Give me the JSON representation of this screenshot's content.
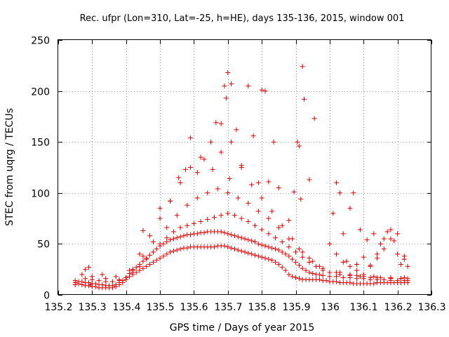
{
  "chart_data": {
    "type": "scatter",
    "title": "Rec. ufpr (Lon=310, Lat=-25, h=HE), days 135-136, 2015, window 001",
    "xlabel": "GPS time / Days of year 2015",
    "ylabel": "STEC from uqrg / TECUs",
    "xlim": [
      135.2,
      136.3
    ],
    "ylim": [
      0,
      250
    ],
    "xticks": [
      "135.2",
      "135.3",
      "135.4",
      "135.5",
      "135.6",
      "135.7",
      "135.8",
      "135.9",
      "136",
      "136.1",
      "136.2",
      "136.3"
    ],
    "yticks": [
      "0",
      "50",
      "100",
      "150",
      "200",
      "250"
    ],
    "grid": true,
    "legend": "none",
    "marker": "plus",
    "color": "#e00000",
    "series": [
      {
        "x": [
          135.25,
          135.25,
          135.26,
          135.27,
          135.28,
          135.29,
          135.295,
          135.3,
          135.31,
          135.32,
          135.33,
          135.34,
          135.35,
          135.36,
          135.37,
          135.38,
          135.39,
          135.4,
          135.41,
          135.42,
          135.43,
          135.44,
          135.45,
          135.46,
          135.47,
          135.48,
          135.49,
          135.5,
          135.51,
          135.52,
          135.53,
          135.54,
          135.55,
          135.56,
          135.57,
          135.58,
          135.59,
          135.6,
          135.61,
          135.62,
          135.63,
          135.64,
          135.65,
          135.66,
          135.67,
          135.68,
          135.69,
          135.7,
          135.71,
          135.72,
          135.73,
          135.74,
          135.75,
          135.76,
          135.77,
          135.78,
          135.79,
          135.8,
          135.81,
          135.82,
          135.83,
          135.84,
          135.85,
          135.86,
          135.87,
          135.88,
          135.89,
          135.9,
          135.91,
          135.92,
          135.93,
          135.94,
          135.95,
          135.96,
          135.97,
          135.98,
          135.99,
          136.0,
          136.01,
          136.02,
          136.03,
          136.04,
          136.05,
          136.06,
          136.07,
          136.08,
          136.09,
          136.1,
          136.11,
          136.12,
          136.13,
          136.14,
          136.15,
          136.16,
          136.17,
          136.18,
          136.19,
          136.2,
          136.21,
          136.22,
          136.23
        ],
        "y": [
          10,
          12,
          11,
          10,
          9,
          9,
          10,
          8,
          8,
          7,
          7,
          7,
          7,
          7,
          8,
          10,
          12,
          15,
          18,
          20,
          22,
          24,
          26,
          28,
          30,
          32,
          34,
          36,
          38,
          40,
          42,
          43,
          44,
          45,
          46,
          46,
          47,
          47,
          47,
          47,
          47,
          47,
          47,
          47,
          48,
          48,
          48,
          47,
          46,
          45,
          44,
          43,
          42,
          41,
          40,
          39,
          38,
          37,
          36,
          35,
          34,
          32,
          30,
          27,
          24,
          20,
          18,
          17,
          16,
          15,
          15,
          15,
          15,
          15,
          15,
          14,
          14,
          13,
          13,
          13,
          12,
          12,
          12,
          12,
          11,
          11,
          11,
          11,
          11,
          11,
          11,
          12,
          12,
          12,
          12,
          12,
          12,
          12,
          12,
          12,
          12
        ]
      },
      {
        "x": [
          135.25,
          135.26,
          135.27,
          135.28,
          135.29,
          135.3,
          135.31,
          135.32,
          135.33,
          135.34,
          135.35,
          135.36,
          135.37,
          135.38,
          135.39,
          135.4,
          135.41,
          135.42,
          135.43,
          135.44,
          135.45,
          135.46,
          135.47,
          135.48,
          135.49,
          135.5,
          135.51,
          135.52,
          135.53,
          135.54,
          135.55,
          135.56,
          135.57,
          135.58,
          135.59,
          135.6,
          135.61,
          135.62,
          135.63,
          135.64,
          135.65,
          135.66,
          135.67,
          135.68,
          135.69,
          135.7,
          135.71,
          135.72,
          135.73,
          135.74,
          135.75,
          135.76,
          135.77,
          135.78,
          135.79,
          135.8,
          135.81,
          135.82,
          135.83,
          135.84,
          135.85,
          135.86,
          135.87,
          135.88,
          135.89,
          135.9,
          135.91,
          135.92,
          135.93,
          135.94,
          135.95,
          135.96,
          135.97,
          135.98,
          136.0,
          136.02,
          136.04,
          136.06,
          136.08,
          136.1,
          136.12,
          136.14,
          136.16,
          136.18,
          136.2,
          136.22,
          136.23
        ],
        "y": [
          14,
          13,
          13,
          12,
          12,
          11,
          11,
          10,
          10,
          9,
          9,
          9,
          10,
          12,
          14,
          17,
          21,
          24,
          27,
          30,
          33,
          36,
          39,
          42,
          45,
          48,
          50,
          52,
          54,
          55,
          56,
          57,
          58,
          59,
          59,
          60,
          60,
          61,
          61,
          62,
          62,
          62,
          62,
          62,
          61,
          60,
          59,
          58,
          57,
          56,
          55,
          54,
          53,
          52,
          50,
          49,
          48,
          47,
          46,
          45,
          44,
          42,
          40,
          38,
          35,
          32,
          29,
          26,
          24,
          22,
          21,
          20,
          20,
          19,
          18,
          18,
          17,
          17,
          16,
          16,
          15,
          15,
          15,
          14,
          14,
          14,
          14
        ]
      },
      {
        "x": [
          135.28,
          135.3,
          135.32,
          135.34,
          135.36,
          135.38,
          135.4,
          135.42,
          135.44,
          135.46,
          135.48,
          135.5,
          135.52,
          135.54,
          135.56,
          135.58,
          135.6,
          135.62,
          135.64,
          135.66,
          135.68,
          135.7,
          135.72,
          135.74,
          135.76,
          135.78,
          135.8,
          135.82,
          135.84,
          135.86,
          135.88,
          135.9,
          135.92,
          135.94,
          135.96,
          135.98,
          136.0,
          136.03,
          136.06,
          136.09,
          136.12,
          136.15,
          136.18,
          136.21,
          136.23
        ],
        "y": [
          16,
          15,
          14,
          13,
          13,
          14,
          17,
          22,
          28,
          35,
          42,
          50,
          56,
          62,
          66,
          68,
          70,
          72,
          74,
          76,
          78,
          80,
          78,
          75,
          72,
          68,
          64,
          60,
          56,
          52,
          47,
          42,
          37,
          32,
          28,
          24,
          22,
          20,
          19,
          18,
          17,
          17,
          16,
          16,
          16
        ]
      },
      {
        "x": [
          135.27,
          135.3,
          135.34,
          135.38,
          135.42,
          135.45,
          135.48,
          135.52,
          135.55,
          135.58,
          135.61,
          135.64,
          135.67,
          135.7,
          135.73,
          135.76,
          135.79,
          135.82,
          135.85,
          135.88,
          135.91,
          135.94,
          135.97,
          136.02,
          136.06,
          136.1,
          136.14,
          136.18,
          136.21
        ],
        "y": [
          20,
          18,
          16,
          15,
          25,
          38,
          52,
          66,
          78,
          88,
          95,
          100,
          104,
          100,
          95,
          90,
          82,
          75,
          66,
          55,
          45,
          36,
          28,
          22,
          20,
          18,
          17,
          16,
          16
        ]
      },
      {
        "x": [
          135.28,
          135.33,
          135.37,
          135.41,
          135.44,
          135.47,
          135.5,
          135.53,
          135.56,
          135.59,
          135.62,
          135.65,
          135.68,
          135.71,
          135.74,
          135.77,
          135.8,
          135.83,
          135.86,
          135.89,
          135.92,
          135.95,
          135.98,
          136.03,
          136.08,
          136.13,
          136.18,
          136.22
        ],
        "y": [
          25,
          20,
          18,
          24,
          40,
          58,
          75,
          92,
          110,
          125,
          135,
          150,
          168,
          150,
          125,
          108,
          95,
          82,
          68,
          55,
          42,
          33,
          26,
          22,
          19,
          18,
          17,
          17
        ]
      },
      {
        "x": [
          135.29,
          135.45,
          135.5,
          135.53,
          135.555,
          135.575,
          135.59,
          135.61,
          135.63,
          135.655,
          135.665,
          135.68,
          135.69,
          135.695,
          135.7,
          135.705,
          135.71,
          135.725,
          135.74,
          135.76,
          135.775,
          135.79,
          135.8,
          135.81,
          135.82,
          135.835,
          135.85,
          135.88,
          135.895,
          135.905,
          135.91,
          135.915,
          135.92,
          135.925,
          135.94,
          135.955
        ],
        "y": [
          27,
          63,
          85,
          92,
          115,
          123,
          154,
          120,
          133,
          123,
          169,
          140,
          205,
          193,
          218,
          114,
          207,
          162,
          127,
          205,
          156,
          110,
          201,
          200,
          111,
          150,
          105,
          73,
          101,
          150,
          146,
          94,
          224,
          192,
          113,
          173
        ]
      },
      {
        "x": [
          136.01,
          136.02,
          136.03,
          136.04,
          136.05,
          136.06,
          136.07,
          136.08,
          136.09,
          136.1,
          136.11,
          136.12,
          136.13,
          136.14,
          136.15,
          136.16,
          136.17,
          136.18,
          136.19,
          136.2,
          136.21,
          136.22,
          136.23
        ],
        "y": [
          80,
          110,
          100,
          60,
          33,
          85,
          100,
          30,
          64,
          37,
          54,
          29,
          60,
          40,
          50,
          55,
          62,
          64,
          53,
          40,
          30,
          35,
          28
        ]
      },
      {
        "x": [
          136.0,
          136.02,
          136.04,
          136.06,
          136.08,
          136.1,
          136.12,
          136.14,
          136.16,
          136.18,
          136.2,
          136.22
        ],
        "y": [
          50,
          40,
          32,
          28,
          24,
          20,
          28,
          36,
          45,
          55,
          60,
          38
        ]
      }
    ]
  }
}
